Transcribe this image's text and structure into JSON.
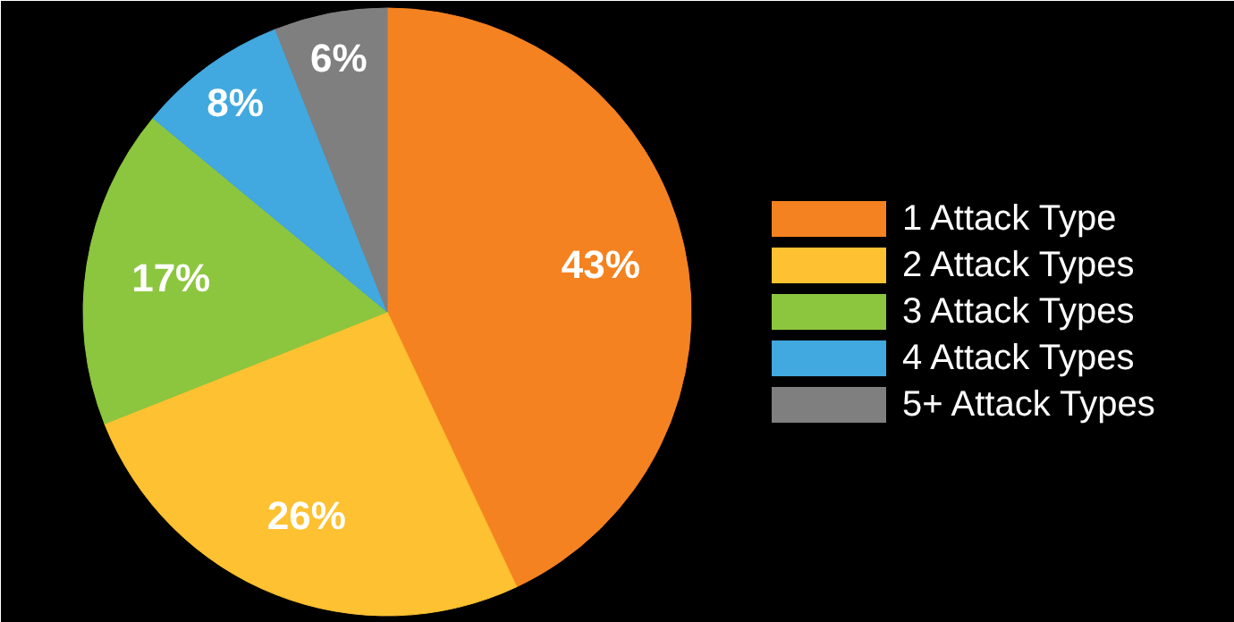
{
  "chart_data": {
    "type": "pie",
    "categories": [
      "1 Attack Type",
      "2 Attack Types",
      "3 Attack Types",
      "4 Attack Types",
      "5+ Attack Types"
    ],
    "values": [
      43,
      26,
      17,
      8,
      6
    ],
    "colors": [
      "#f58220",
      "#fdc131",
      "#8cc63f",
      "#41a9df",
      "#7f7f80"
    ],
    "value_labels": [
      "43%",
      "26%",
      "17%",
      "8%",
      "6%"
    ],
    "legend": "right"
  }
}
